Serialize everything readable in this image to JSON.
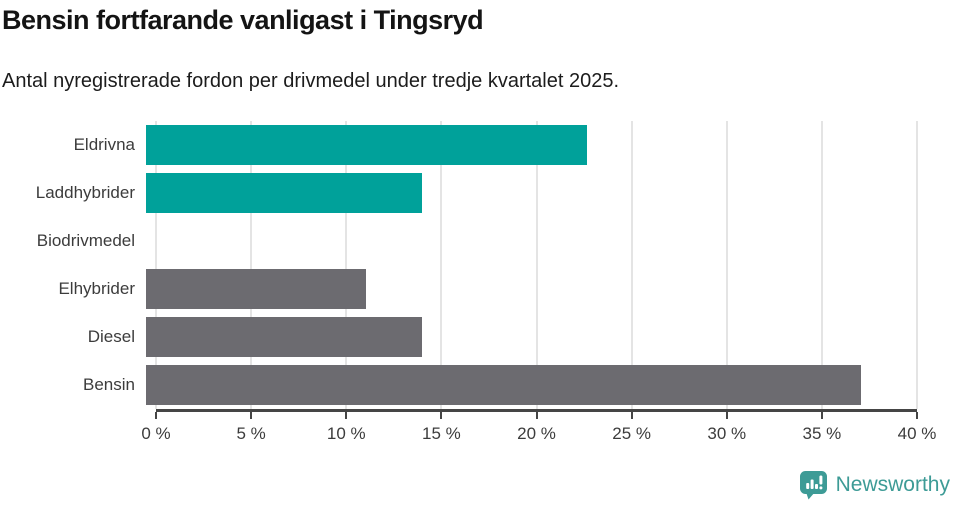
{
  "header": {
    "title": "Bensin fortfarande vanligast i Tingsryd",
    "subtitle": "Antal nyregistrerade fordon per drivmedel under tredje kvartalet 2025."
  },
  "colors": {
    "highlight_teal": "#00a19a",
    "default_gray": "#6c6b70",
    "axis": "#454545",
    "gridline": "#e4e4e4",
    "label_text": "#3c3c3c",
    "brand_teal": "#3d9b96"
  },
  "chart_data": {
    "type": "bar",
    "orientation": "horizontal",
    "title": "Bensin fortfarande vanligast i Tingsryd",
    "subtitle": "Antal nyregistrerade fordon per drivmedel under tredje kvartalet 2025.",
    "categories": [
      "Eldrivna",
      "Laddhybrider",
      "Biodrivmedel",
      "Elhybrider",
      "Diesel",
      "Bensin"
    ],
    "values": [
      22.9,
      14.3,
      0,
      11.4,
      14.3,
      37.1
    ],
    "bar_colors": [
      "#00a19a",
      "#00a19a",
      "#6c6b70",
      "#6c6b70",
      "#6c6b70",
      "#6c6b70"
    ],
    "unit": "%",
    "xlabel": "",
    "ylabel": "",
    "xlim": [
      0,
      40
    ],
    "x_ticks": [
      0,
      5,
      10,
      15,
      20,
      25,
      30,
      35,
      40
    ],
    "x_tick_labels": [
      "0 %",
      "5 %",
      "10 %",
      "15 %",
      "20 %",
      "25 %",
      "30 %",
      "35 %",
      "40 %"
    ],
    "grid": true,
    "legend": false
  },
  "footer": {
    "brand_label": "Newsworthy",
    "brand_icon": "newsworthy-chart-bubble-icon"
  }
}
